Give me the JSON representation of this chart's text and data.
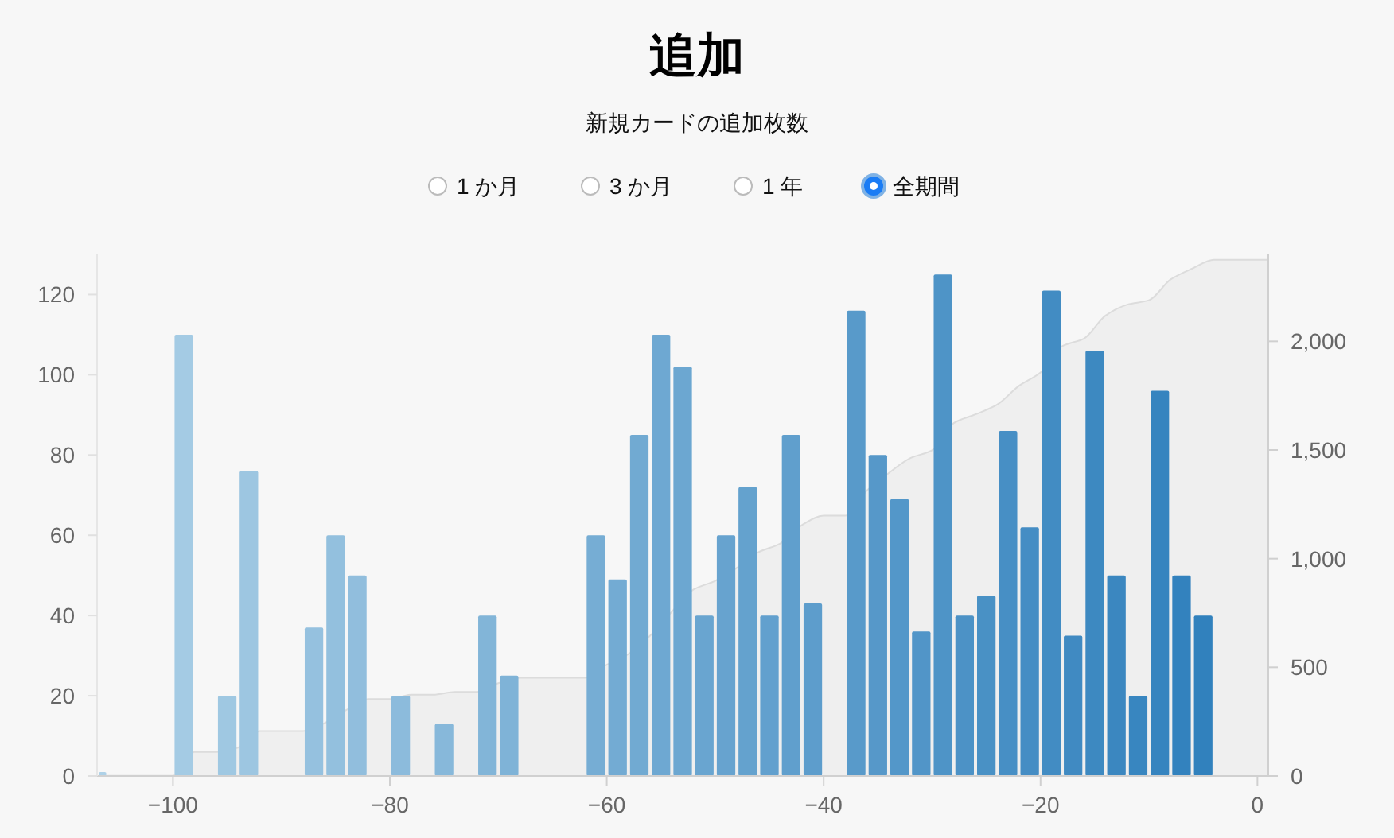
{
  "chart_data": {
    "type": "histogram",
    "title": "追加",
    "subtitle": "新規カードの追加枚数",
    "annotations": [
      "1 か月",
      "3 か月",
      "1 年",
      "全期間"
    ],
    "series": [
      {
        "bins": [
          -107,
          -106,
          -100,
          -98,
          -96,
          -94,
          -92,
          -88,
          -86,
          -84,
          -82,
          -80,
          -78,
          -76,
          -74,
          -72,
          -70,
          -68,
          -62,
          -60,
          -58,
          -56,
          -54,
          -52,
          -50,
          -48,
          -46,
          -44,
          -42,
          -40,
          -38,
          -36,
          -34,
          -32,
          -30,
          -28,
          -26,
          -24,
          -22,
          -20,
          -18,
          -16,
          -14,
          -12,
          -10,
          -8,
          -6,
          -4
        ],
        "values": [
          1,
          0,
          110,
          0,
          20,
          76,
          0,
          37,
          60,
          50,
          0,
          20,
          0,
          13,
          0,
          40,
          25,
          0,
          60,
          49,
          85,
          110,
          102,
          40,
          60,
          72,
          40,
          85,
          43,
          0,
          116,
          80,
          69,
          36,
          125,
          40,
          45,
          86,
          62,
          121,
          35,
          106,
          50,
          20,
          96,
          50,
          40
        ],
        "colors": [
          "#aed1e7",
          "#accfe6",
          "#a4cbe4",
          "#a2c9e3",
          "#9fc8e2",
          "#9dc6e1",
          "#9ac4e0",
          "#95c1df",
          "#93c0de",
          "#91bedd",
          "#8ebddc",
          "#8cbbdc",
          "#89b9db",
          "#87b8da",
          "#84b6d9",
          "#82b5d8",
          "#7fb3d7",
          "#7db2d7",
          "#76add4",
          "#73abd3",
          "#71aad2",
          "#6ea8d2",
          "#6ca7d1",
          "#69a5d0",
          "#67a3cf",
          "#64a2ce",
          "#62a0ce",
          "#609fcd",
          "#5d9dcc",
          "#5b9ccb",
          "#589aca",
          "#5698c9",
          "#5397c9",
          "#5195c8",
          "#4e94c7",
          "#4c92c6",
          "#4991c5",
          "#478fc5",
          "#458dc4",
          "#428cc3",
          "#408ac2",
          "#3d89c1",
          "#3b87c0",
          "#3886c0",
          "#3684bf",
          "#3382be",
          "#3181bd"
        ]
      },
      {
        "type": "area",
        "axis": "y2",
        "color": "#efefef",
        "x": [
          -107,
          -106,
          -104,
          -102,
          -100,
          -98,
          -96,
          -94,
          -92,
          -90,
          -88,
          -86,
          -84,
          -82,
          -80,
          -78,
          -76,
          -74,
          -72,
          -70,
          -68,
          -66,
          -64,
          -62,
          -60,
          -58,
          -56,
          -54,
          -52,
          -50,
          -48,
          -46,
          -44,
          -42,
          -40,
          -38,
          -36,
          -34,
          -32,
          -30,
          -28,
          -26,
          -24,
          -22,
          -20,
          -18,
          -16,
          -14,
          -12,
          -10,
          -8,
          -6,
          -4,
          1
        ],
        "values": [
          0,
          1,
          1,
          1,
          1,
          111,
          111,
          131,
          207,
          207,
          207,
          244,
          304,
          354,
          354,
          374,
          374,
          387,
          387,
          427,
          452,
          452,
          452,
          452,
          512,
          561,
          646,
          756,
          858,
          898,
          958,
          1030,
          1070,
          1155,
          1198,
          1198,
          1314,
          1394,
          1463,
          1499,
          1624,
          1664,
          1709,
          1795,
          1857,
          1978,
          2013,
          2119,
          2169,
          2189,
          2285,
          2335,
          2375,
          2375
        ]
      }
    ],
    "xlim": [
      -107,
      1
    ],
    "xticks": [
      {
        "value": -100,
        "label": "−100"
      },
      {
        "value": -80,
        "label": "−80"
      },
      {
        "value": -60,
        "label": "−60"
      },
      {
        "value": -40,
        "label": "−40"
      },
      {
        "value": -20,
        "label": "−20"
      },
      0
    ],
    "ylim": [
      0,
      130
    ],
    "yticks": [
      0,
      20,
      40,
      60,
      80,
      100,
      120
    ],
    "y2lim": [
      0,
      2400
    ],
    "y2ticks": [
      0,
      500,
      {
        "value": 1000,
        "label": "1,000"
      },
      {
        "value": 1500,
        "label": "1,500"
      },
      {
        "value": 2000,
        "label": "2,000"
      }
    ],
    "grid": false
  }
}
